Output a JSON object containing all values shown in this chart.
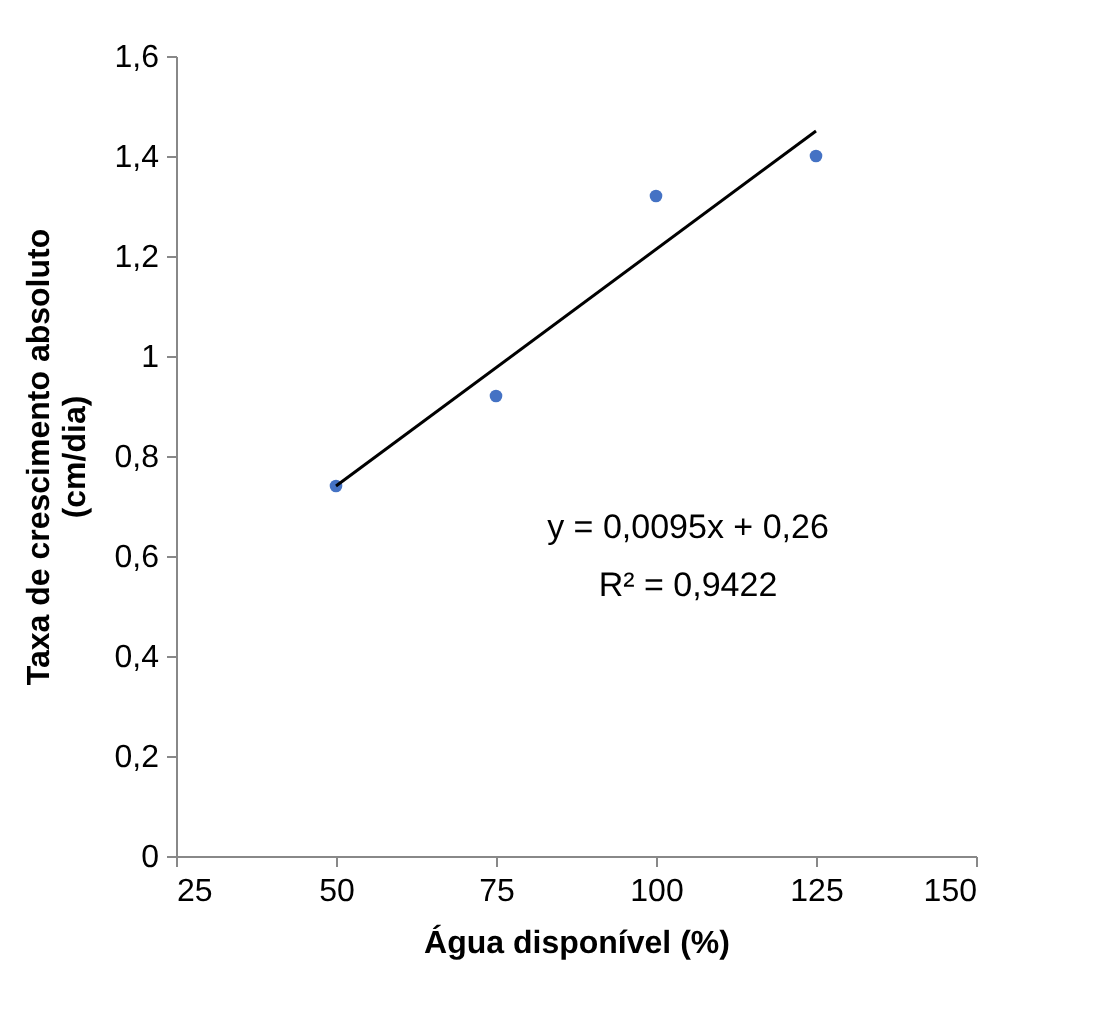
{
  "chart_data": {
    "type": "scatter",
    "xlabel": "Água disponível (%)",
    "ylabel": "Taxa de crescimento absoluto\n(cm/dia)",
    "series": [
      {
        "color": "#4472c4",
        "marker": "circle",
        "x": [
          50,
          75,
          100,
          125
        ],
        "values": [
          0.74,
          0.92,
          1.32,
          1.4
        ]
      },
      {
        "type": "line",
        "color": "#000000",
        "x": [
          50,
          125
        ],
        "values": [
          0.74,
          1.45
        ]
      }
    ],
    "xlim": [
      25,
      150
    ],
    "xticks": [
      25,
      50,
      75,
      100,
      125,
      150
    ],
    "ylim": [
      0,
      1.6
    ],
    "yticks": [
      {
        "value": 0,
        "label": "0"
      },
      {
        "value": 0.2,
        "label": "0,2"
      },
      {
        "value": 0.4,
        "label": "0,4"
      },
      {
        "value": 0.6,
        "label": "0,6"
      },
      {
        "value": 0.8,
        "label": "0,8"
      },
      {
        "value": 1,
        "label": "1"
      },
      {
        "value": 1.2,
        "label": "1,2"
      },
      {
        "value": 1.4,
        "label": "1,4"
      },
      {
        "value": 1.6,
        "label": "1,6"
      }
    ],
    "annotations": [
      "y = 0,0095x + 0,26",
      "R² = 0,9422"
    ],
    "grid": false
  }
}
